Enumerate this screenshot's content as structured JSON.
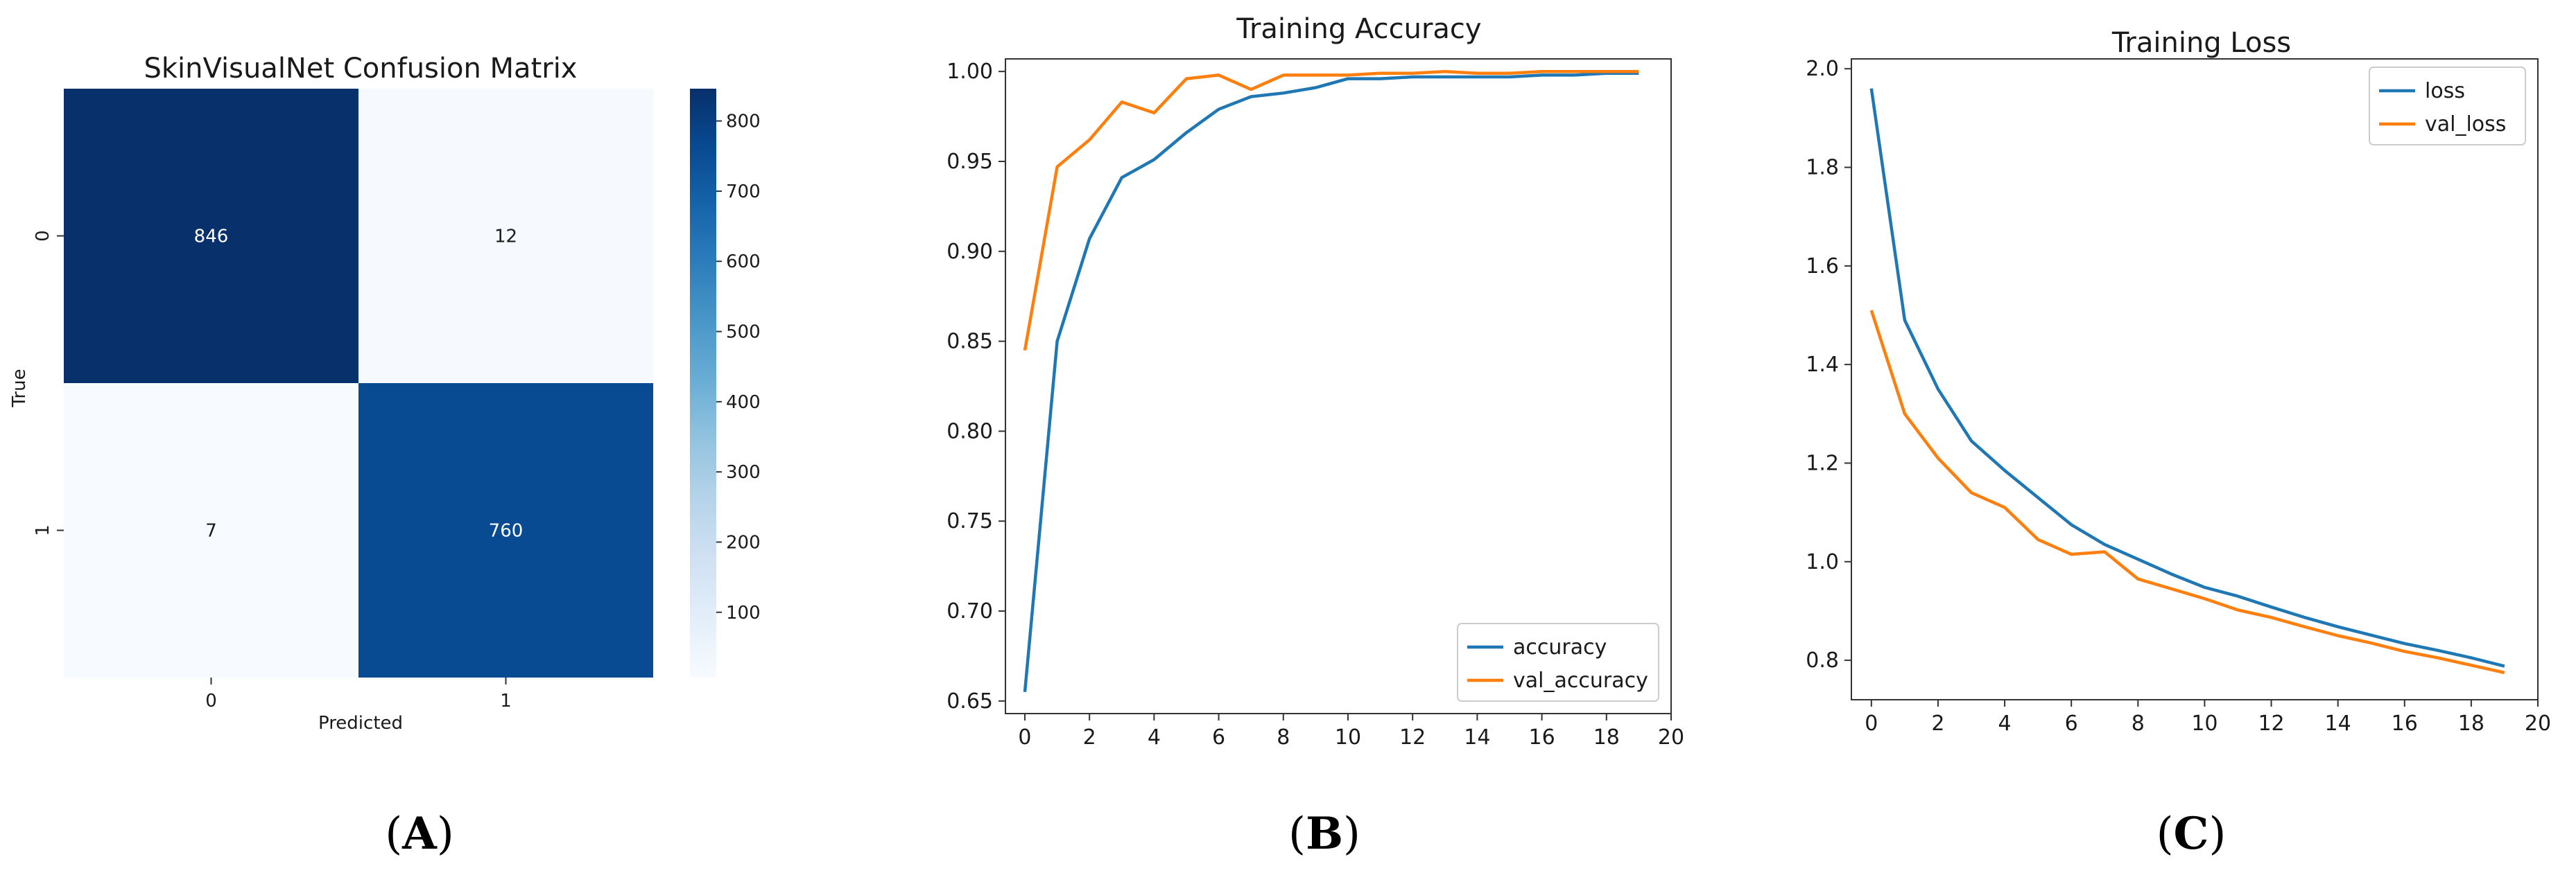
{
  "panel_labels": {
    "a": "A",
    "b": "B",
    "c": "C"
  },
  "colors": {
    "blue": "#1f77b4",
    "orange": "#ff7f0e",
    "cm_dark": "#08306b",
    "cm_light": "#f7fbff"
  },
  "chart_data": [
    {
      "type": "heatmap",
      "title": "SkinVisualNet Confusion Matrix",
      "xlabel": "Predicted",
      "ylabel": "True",
      "x_categories": [
        "0",
        "1"
      ],
      "y_categories": [
        "0",
        "1"
      ],
      "values": [
        [
          846,
          12
        ],
        [
          7,
          760
        ]
      ],
      "colorbar": {
        "ticks": [
          100,
          200,
          300,
          400,
          500,
          600,
          700,
          800
        ],
        "range": [
          7,
          846
        ],
        "labels": [
          "100",
          "200",
          "300",
          "400",
          "500",
          "600",
          "700",
          "800"
        ]
      },
      "cmap": "Blues"
    },
    {
      "type": "line",
      "title": "Training Accuracy",
      "xlim": [
        -0.6,
        20
      ],
      "ylim": [
        0.643,
        1.007
      ],
      "x_ticks": [
        0,
        2,
        4,
        6,
        8,
        10,
        12,
        14,
        16,
        18,
        20
      ],
      "x_tick_labels": [
        "0",
        "2",
        "4",
        "6",
        "8",
        "10",
        "12",
        "14",
        "16",
        "18",
        "20"
      ],
      "y_ticks": [
        0.65,
        0.7,
        0.75,
        0.8,
        0.85,
        0.9,
        0.95,
        1.0
      ],
      "y_tick_labels": [
        "0.65",
        "0.70",
        "0.75",
        "0.80",
        "0.85",
        "0.90",
        "0.95",
        "1.00"
      ],
      "x": [
        0,
        1,
        2,
        3,
        4,
        5,
        6,
        7,
        8,
        9,
        10,
        11,
        12,
        13,
        14,
        15,
        16,
        17,
        18,
        19
      ],
      "series": [
        {
          "name": "accuracy",
          "color": "#1f77b4",
          "values": [
            0.655,
            0.85,
            0.907,
            0.941,
            0.951,
            0.966,
            0.979,
            0.986,
            0.988,
            0.991,
            0.996,
            0.996,
            0.997,
            0.997,
            0.997,
            0.997,
            0.998,
            0.998,
            0.999,
            0.999
          ]
        },
        {
          "name": "val_accuracy",
          "color": "#ff7f0e",
          "values": [
            0.845,
            0.947,
            0.962,
            0.983,
            0.977,
            0.996,
            0.998,
            0.99,
            0.998,
            0.998,
            0.998,
            0.999,
            0.999,
            1.0,
            0.999,
            0.999,
            1.0,
            1.0,
            1.0,
            1.0
          ]
        }
      ],
      "legend": "lower-right"
    },
    {
      "type": "line",
      "title": "Training Loss",
      "xlim": [
        -0.6,
        20
      ],
      "ylim": [
        0.72,
        2.02
      ],
      "x_ticks": [
        0,
        2,
        4,
        6,
        8,
        10,
        12,
        14,
        16,
        18,
        20
      ],
      "x_tick_labels": [
        "0",
        "2",
        "4",
        "6",
        "8",
        "10",
        "12",
        "14",
        "16",
        "18",
        "20"
      ],
      "y_ticks": [
        0.8,
        1.0,
        1.2,
        1.4,
        1.6,
        1.8,
        2.0
      ],
      "y_tick_labels": [
        "0.8",
        "1.0",
        "1.2",
        "1.4",
        "1.6",
        "1.8",
        "2.0"
      ],
      "x": [
        0,
        1,
        2,
        3,
        4,
        5,
        6,
        7,
        8,
        9,
        10,
        11,
        12,
        13,
        14,
        15,
        16,
        17,
        18,
        19
      ],
      "series": [
        {
          "name": "loss",
          "color": "#1f77b4",
          "values": [
            1.96,
            1.49,
            1.35,
            1.245,
            1.185,
            1.13,
            1.075,
            1.035,
            1.005,
            0.975,
            0.948,
            0.93,
            0.908,
            0.887,
            0.868,
            0.851,
            0.834,
            0.82,
            0.805,
            0.788
          ]
        },
        {
          "name": "val_loss",
          "color": "#ff7f0e",
          "values": [
            1.51,
            1.3,
            1.21,
            1.14,
            1.11,
            1.045,
            1.015,
            1.02,
            0.965,
            0.945,
            0.925,
            0.902,
            0.887,
            0.868,
            0.85,
            0.835,
            0.818,
            0.805,
            0.79,
            0.775
          ]
        }
      ],
      "legend": "upper-right"
    }
  ]
}
